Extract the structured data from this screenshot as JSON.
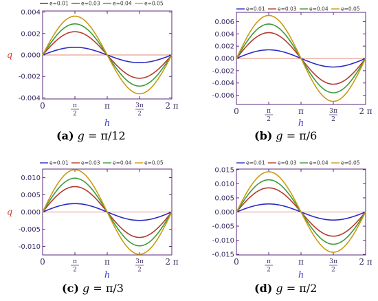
{
  "colors": {
    "e001": "#2b2bc4",
    "e003": "#b53a2b",
    "e004": "#3a9a3a",
    "e005": "#c99a14",
    "axis": "#5a2a7a",
    "tick_text": "#3a2a60",
    "axis_label": "#3b3bd0",
    "ylabel": "#d23a2a",
    "zero_line": "#e08a7a"
  },
  "chart_data": [
    {
      "type": "line",
      "caption": {
        "letter": "(a)",
        "var": "g",
        "eq": " = ",
        "val": "π/12"
      },
      "xlabel": "h",
      "ylabel": "q",
      "xlim": [
        0,
        6.2832
      ],
      "ylim": [
        -0.0041,
        0.0041
      ],
      "xticks": [
        0,
        1.5708,
        3.1416,
        4.7124,
        6.2832
      ],
      "xtick_labels": [
        "0",
        "π/2",
        "π",
        "3π/2",
        "2 π"
      ],
      "yticks": [
        0.004,
        0.002,
        0.0,
        -0.002,
        -0.004
      ],
      "ytick_labels": [
        "0.004",
        "0.002",
        "0.000",
        "-0.002",
        "-0.004"
      ],
      "legend": "top",
      "series": [
        {
          "name": "e=0.01",
          "amplitude": 0.00072
        },
        {
          "name": "e=0.03",
          "amplitude": 0.00217
        },
        {
          "name": "e=0.04",
          "amplitude": 0.0029
        },
        {
          "name": "e=0.05",
          "amplitude": 0.00362
        }
      ]
    },
    {
      "type": "line",
      "caption": {
        "letter": "(b)",
        "var": "g",
        "eq": " = ",
        "val": "π/6"
      },
      "xlabel": "h",
      "ylabel": "",
      "xlim": [
        0,
        6.2832
      ],
      "ylim": [
        -0.0075,
        0.0075
      ],
      "xticks": [
        0,
        1.5708,
        3.1416,
        4.7124,
        6.2832
      ],
      "xtick_labels": [
        "0",
        "π/2",
        "π",
        "3π/2",
        "2 π"
      ],
      "yticks": [
        0.006,
        0.004,
        0.002,
        0.0,
        -0.002,
        -0.004,
        -0.006
      ],
      "ytick_labels": [
        "0.006",
        "0.004",
        "0.002",
        "0.000",
        "-0.002",
        "-0.004",
        "-0.006"
      ],
      "legend": "top",
      "series": [
        {
          "name": "e=0.01",
          "amplitude": 0.0014
        },
        {
          "name": "e=0.03",
          "amplitude": 0.0042
        },
        {
          "name": "e=0.04",
          "amplitude": 0.0056
        },
        {
          "name": "e=0.05",
          "amplitude": 0.007
        }
      ]
    },
    {
      "type": "line",
      "caption": {
        "letter": "(c)",
        "var": "g",
        "eq": " = ",
        "val": "π/3"
      },
      "xlabel": "h",
      "ylabel": "q",
      "xlim": [
        0,
        6.2832
      ],
      "ylim": [
        -0.0125,
        0.0125
      ],
      "xticks": [
        0,
        1.5708,
        3.1416,
        4.7124,
        6.2832
      ],
      "xtick_labels": [
        "0",
        "π/2",
        "π",
        "3π/2",
        "2 π"
      ],
      "yticks": [
        0.01,
        0.005,
        0.0,
        -0.005,
        -0.01
      ],
      "ytick_labels": [
        "0.010",
        "0.005",
        "0.000",
        "-0.005",
        "-0.010"
      ],
      "legend": "top",
      "series": [
        {
          "name": "e=0.01",
          "amplitude": 0.00245
        },
        {
          "name": "e=0.03",
          "amplitude": 0.0074
        },
        {
          "name": "e=0.04",
          "amplitude": 0.00985
        },
        {
          "name": "e=0.05",
          "amplitude": 0.0123
        }
      ]
    },
    {
      "type": "line",
      "caption": {
        "letter": "(d)",
        "var": "g",
        "eq": " = ",
        "val": "π/2"
      },
      "xlabel": "h",
      "ylabel": "",
      "xlim": [
        0,
        6.2832
      ],
      "ylim": [
        -0.0152,
        0.0152
      ],
      "xticks": [
        0,
        1.5708,
        3.1416,
        4.7124,
        6.2832
      ],
      "xtick_labels": [
        "0",
        "π/2",
        "π",
        "3π/2",
        "2 π"
      ],
      "yticks": [
        0.015,
        0.01,
        0.005,
        0.0,
        -0.005,
        -0.01,
        -0.015
      ],
      "ytick_labels": [
        "0.015",
        "0.010",
        "0.005",
        "0.000",
        "-0.005",
        "-0.010",
        "-0.015"
      ],
      "legend": "top",
      "series": [
        {
          "name": "e=0.01",
          "amplitude": 0.00285
        },
        {
          "name": "e=0.03",
          "amplitude": 0.00855
        },
        {
          "name": "e=0.04",
          "amplitude": 0.0114
        },
        {
          "name": "e=0.05",
          "amplitude": 0.01425
        }
      ]
    }
  ]
}
